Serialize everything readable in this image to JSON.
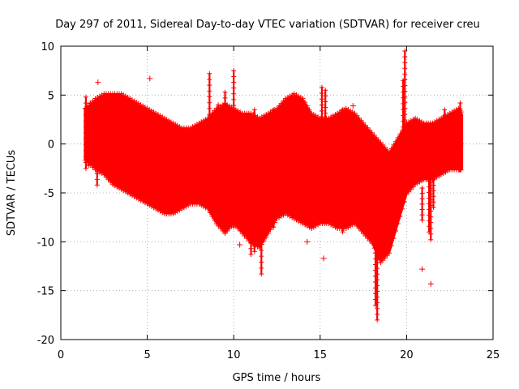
{
  "chart_data": {
    "type": "scatter",
    "title": "Day 297 of 2011, Sidereal Day-to-day VTEC variation (SDTVAR) for receiver creu",
    "xlabel": "GPS time / hours",
    "ylabel": "SDTVAR / TECUs",
    "xlim": [
      0,
      25
    ],
    "ylim": [
      -20,
      10
    ],
    "xticks": [
      0,
      5,
      10,
      15,
      20,
      25
    ],
    "yticks": [
      -20,
      -15,
      -10,
      -5,
      0,
      5,
      10
    ],
    "grid": true,
    "marker": "+",
    "color": "#ff0000",
    "envelope": {
      "x": [
        1.4,
        2.0,
        2.5,
        3.0,
        3.5,
        4.0,
        4.5,
        5.0,
        5.5,
        6.0,
        6.5,
        7.0,
        7.5,
        8.0,
        8.5,
        9.0,
        9.5,
        10.0,
        10.5,
        11.0,
        11.5,
        12.0,
        12.5,
        13.0,
        13.5,
        14.0,
        14.5,
        15.0,
        15.5,
        16.0,
        16.5,
        17.0,
        17.5,
        18.0,
        18.5,
        19.0,
        19.5,
        20.0,
        20.5,
        21.0,
        21.5,
        22.0,
        22.5,
        23.0,
        23.2
      ],
      "upper": [
        3.5,
        4.5,
        5.0,
        5.0,
        5.0,
        4.5,
        4.0,
        3.5,
        3.0,
        2.5,
        2.0,
        1.5,
        1.5,
        2.0,
        2.5,
        3.5,
        4.0,
        3.5,
        3.0,
        3.0,
        2.5,
        3.0,
        3.5,
        4.5,
        5.0,
        4.5,
        3.0,
        2.5,
        2.5,
        3.0,
        3.5,
        3.0,
        2.0,
        1.0,
        0.0,
        -1.0,
        0.5,
        2.0,
        2.5,
        2.0,
        2.0,
        2.5,
        3.0,
        3.5,
        3.0
      ],
      "lower": [
        -1.5,
        -2.5,
        -3.0,
        -4.0,
        -4.5,
        -5.0,
        -5.5,
        -6.0,
        -6.5,
        -7.0,
        -7.0,
        -6.5,
        -6.0,
        -6.0,
        -6.5,
        -8.0,
        -9.0,
        -8.0,
        -9.0,
        -10.0,
        -10.5,
        -9.0,
        -7.5,
        -7.0,
        -7.5,
        -8.0,
        -8.5,
        -8.0,
        -8.0,
        -8.5,
        -8.5,
        -8.0,
        -9.0,
        -10.0,
        -12.0,
        -11.0,
        -8.0,
        -5.0,
        -4.0,
        -3.5,
        -3.5,
        -3.0,
        -2.5,
        -2.5,
        -2.5
      ]
    },
    "spikes": [
      {
        "x": 1.45,
        "min": -2.5,
        "max": 4.8
      },
      {
        "x": 1.6,
        "min": -2.2,
        "max": 3.5
      },
      {
        "x": 1.7,
        "min": -1.5,
        "max": 4.2
      },
      {
        "x": 2.1,
        "min": -4.2,
        "max": 1.0
      },
      {
        "x": 8.6,
        "min": -6.5,
        "max": 7.2
      },
      {
        "x": 9.1,
        "min": -6.5,
        "max": 4.0
      },
      {
        "x": 9.5,
        "min": -9.0,
        "max": 5.3
      },
      {
        "x": 10.0,
        "min": -8.5,
        "max": 7.5
      },
      {
        "x": 11.0,
        "min": -11.3,
        "max": 2.0
      },
      {
        "x": 11.2,
        "min": -11.0,
        "max": 3.5
      },
      {
        "x": 11.6,
        "min": -13.3,
        "max": 2.5
      },
      {
        "x": 12.3,
        "min": -8.5,
        "max": 3.5
      },
      {
        "x": 15.1,
        "min": -7.5,
        "max": 5.8
      },
      {
        "x": 15.3,
        "min": -8.0,
        "max": 5.5
      },
      {
        "x": 16.3,
        "min": -9.0,
        "max": 3.5
      },
      {
        "x": 18.2,
        "min": -16.5,
        "max": -4.0
      },
      {
        "x": 18.3,
        "min": -18.0,
        "max": -4.5
      },
      {
        "x": 19.8,
        "min": -6.0,
        "max": 6.5
      },
      {
        "x": 19.9,
        "min": -4.0,
        "max": 9.5
      },
      {
        "x": 20.9,
        "min": -7.8,
        "max": -4.5
      },
      {
        "x": 21.3,
        "min": -9.0,
        "max": -1.5
      },
      {
        "x": 21.4,
        "min": -9.8,
        "max": -1.0
      },
      {
        "x": 21.55,
        "min": -6.5,
        "max": -2.5
      },
      {
        "x": 22.2,
        "min": -2.0,
        "max": 3.5
      },
      {
        "x": 23.1,
        "min": -2.5,
        "max": 4.2
      }
    ],
    "outliers": [
      {
        "x": 2.15,
        "y": 6.3
      },
      {
        "x": 3.5,
        "y": -4.0
      },
      {
        "x": 5.15,
        "y": 6.7
      },
      {
        "x": 10.35,
        "y": -10.3
      },
      {
        "x": 15.2,
        "y": -11.7
      },
      {
        "x": 16.9,
        "y": 3.9
      },
      {
        "x": 14.25,
        "y": -10.0
      },
      {
        "x": 20.9,
        "y": -12.8
      },
      {
        "x": 21.4,
        "y": -14.3
      }
    ]
  }
}
